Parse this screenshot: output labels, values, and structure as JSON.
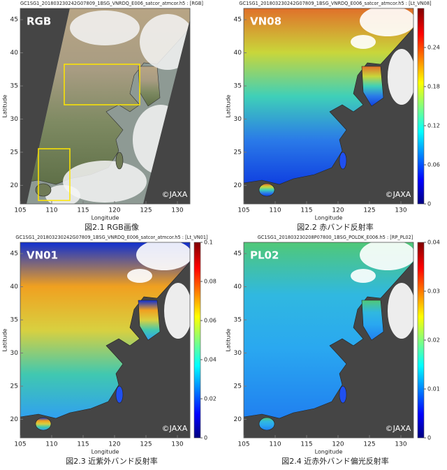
{
  "panels": [
    {
      "title": "GC1SG1_201803230242G07809_1BSG_VNRDQ_E006_satcor_atmcor.h5 : [RGB]",
      "label": "RGB",
      "caption": "図2.1 RGB画像",
      "credit": "©JAXA",
      "xlabel": "Longitude",
      "ylabel": "Latitude",
      "xlim": [
        105,
        132
      ],
      "ylim": [
        17.2,
        46.7
      ],
      "xticks": [
        105,
        110,
        115,
        120,
        125,
        130
      ],
      "yticks": [
        20,
        25,
        30,
        35,
        40,
        45
      ]
    },
    {
      "title": "GC1SG1_201803230242G07809_1BSG_VNRDQ_E006_satcor_atmcor.h5 : [Lt_VN08]",
      "label": "VN08",
      "caption": "図2.2 赤バンド反射率",
      "credit": "©JAXA",
      "xlabel": "Longitude",
      "ylabel": "Latitude",
      "xlim": [
        105,
        132
      ],
      "ylim": [
        17.2,
        46.7
      ],
      "xticks": [
        105,
        110,
        115,
        120,
        125,
        130
      ],
      "yticks": [
        20,
        25,
        30,
        35,
        40,
        45
      ],
      "clim": [
        0,
        0.3
      ],
      "cticks": [
        0,
        0.06,
        0.12,
        0.18,
        0.24
      ]
    },
    {
      "title": "GC1SG1_201803230242G07809_1BSG_VNRDQ_E006_satcor_atmcor.h5 : [Lt_VN01]",
      "label": "VN01",
      "caption": "図2.3 近紫外バンド反射率",
      "credit": "©JAXA",
      "xlabel": "Longitude",
      "ylabel": "Latitude",
      "xlim": [
        105,
        132
      ],
      "ylim": [
        17.2,
        46.7
      ],
      "xticks": [
        105,
        110,
        115,
        120,
        125,
        130
      ],
      "yticks": [
        20,
        25,
        30,
        35,
        40,
        45
      ],
      "clim": [
        0,
        0.1
      ],
      "cticks": [
        0,
        0.02,
        0.04,
        0.06,
        0.08,
        0.1
      ]
    },
    {
      "title": "GC1SG1_201803230208P07800_1BSG_POLDK_E006.h5 : [RP_PL02]",
      "label": "PL02",
      "caption": "図2.4 近赤外バンド偏光反射率",
      "credit": "©JAXA",
      "xlabel": "Longitude",
      "ylabel": "Latitude",
      "xlim": [
        105,
        132
      ],
      "ylim": [
        17.2,
        46.7
      ],
      "xticks": [
        105,
        110,
        115,
        120,
        125,
        130
      ],
      "yticks": [
        20,
        25,
        30,
        35,
        40,
        45
      ],
      "clim": [
        0,
        0.04
      ],
      "cticks": [
        0,
        0.01,
        0.02,
        0.03,
        0.04
      ]
    }
  ]
}
